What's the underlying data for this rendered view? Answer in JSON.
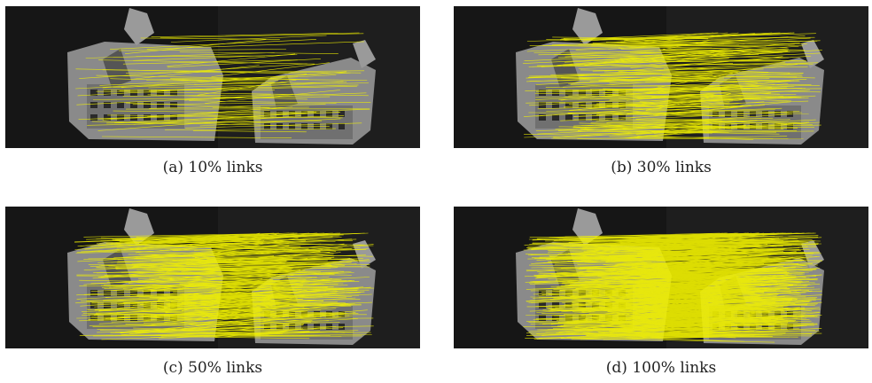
{
  "figure": {
    "panels": [
      {
        "id": "a",
        "caption": "(a)  10% links",
        "link_fraction": 0.1
      },
      {
        "id": "b",
        "caption": "(b)  30% links",
        "link_fraction": 0.3
      },
      {
        "id": "c",
        "caption": "(c)  50% links",
        "link_fraction": 0.5
      },
      {
        "id": "d",
        "caption": "(d)  100% links",
        "link_fraction": 1.0
      }
    ]
  },
  "colors": {
    "link": "#f2f200",
    "background": "#161616",
    "building": "#8a8a8a"
  }
}
